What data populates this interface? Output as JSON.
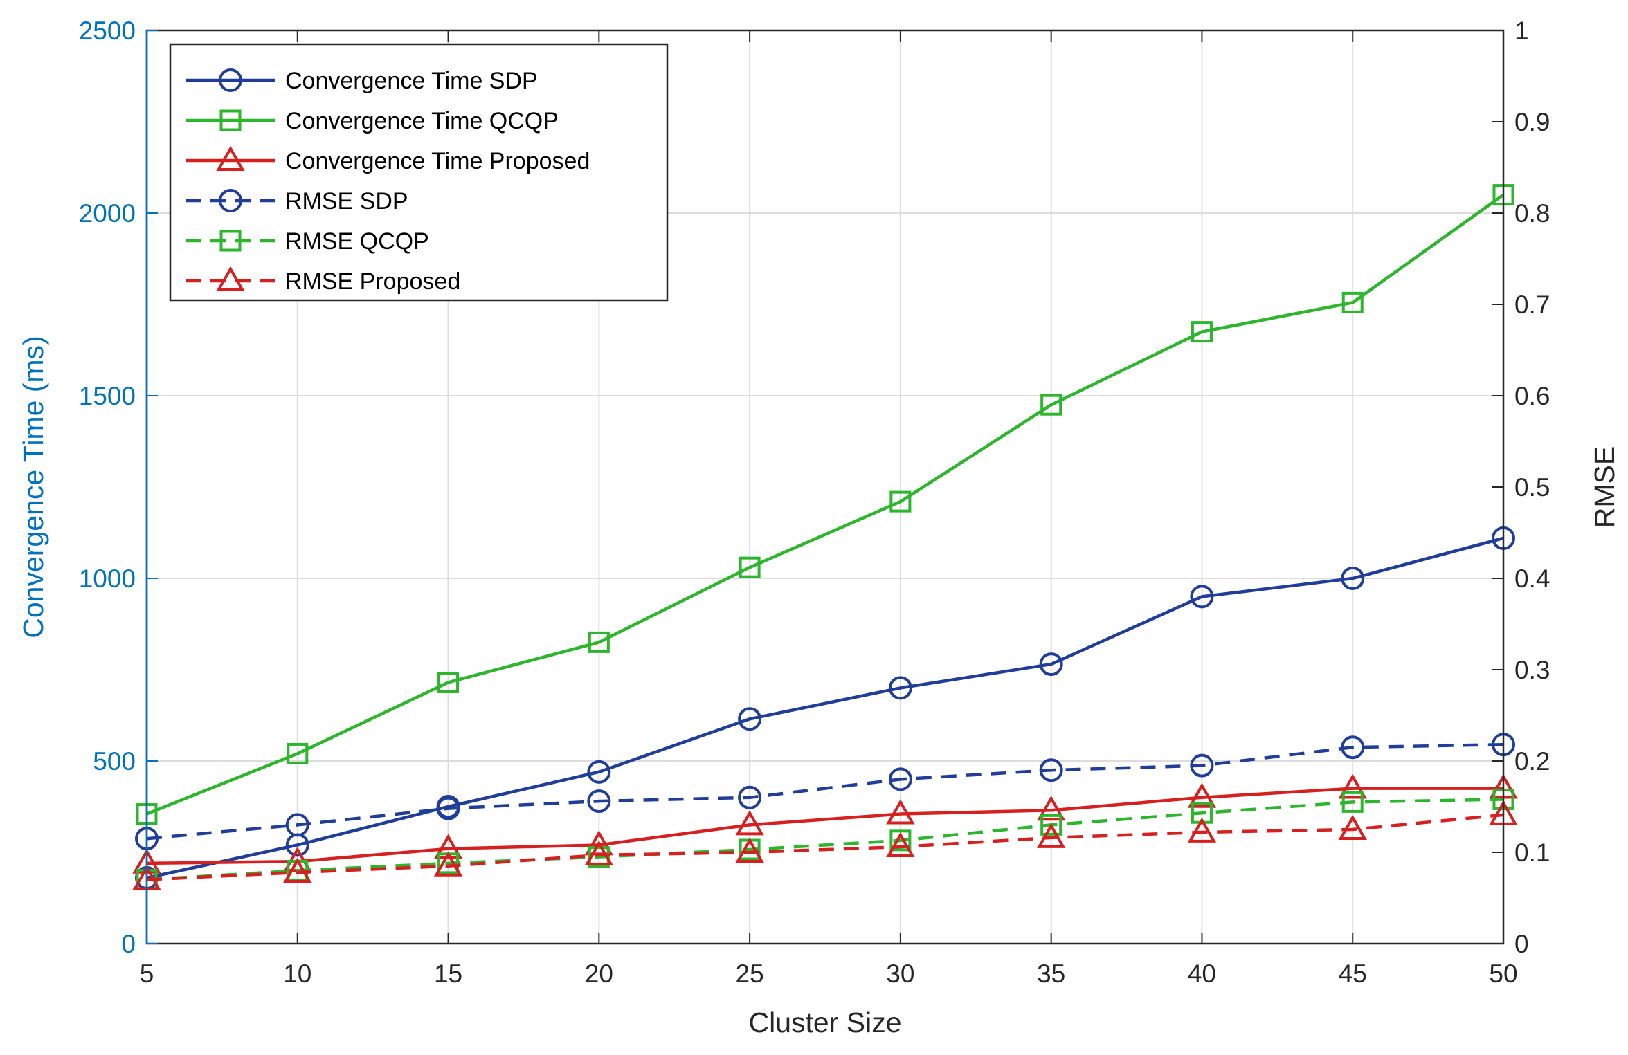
{
  "chart_data": {
    "type": "line",
    "title": "",
    "xlabel": "Cluster Size",
    "ylabel_left": "Convergence Time (ms)",
    "ylabel_right": "RMSE",
    "x": [
      5,
      10,
      15,
      20,
      25,
      30,
      35,
      40,
      45,
      50
    ],
    "x_ticks": [
      "5",
      "10",
      "15",
      "20",
      "25",
      "30",
      "35",
      "40",
      "45",
      "50"
    ],
    "xlim": [
      5,
      50
    ],
    "ylim_left": [
      0,
      2500
    ],
    "ylim_right": [
      0,
      1
    ],
    "y_ticks_left": [
      "0",
      "500",
      "1000",
      "1500",
      "2000",
      "2500"
    ],
    "y_ticks_right": [
      "0",
      "0.1",
      "0.2",
      "0.3",
      "0.4",
      "0.5",
      "0.6",
      "0.7",
      "0.8",
      "0.9",
      "1"
    ],
    "grid": true,
    "legend_position": "top-left",
    "series": [
      {
        "name": "Convergence Time SDP",
        "axis": "left",
        "style": "solid",
        "marker": "circle",
        "color": "#1F3D99",
        "values": [
          180,
          270,
          375,
          470,
          615,
          700,
          765,
          950,
          1000,
          1110
        ]
      },
      {
        "name": "Convergence Time QCQP",
        "axis": "left",
        "style": "solid",
        "marker": "square",
        "color": "#2DB52D",
        "values": [
          355,
          520,
          715,
          825,
          1030,
          1210,
          1475,
          1675,
          1755,
          2050
        ]
      },
      {
        "name": "Convergence Time Proposed",
        "axis": "left",
        "style": "solid",
        "marker": "triangle",
        "color": "#D62020",
        "values": [
          220,
          225,
          260,
          270,
          325,
          355,
          365,
          400,
          425,
          425
        ]
      },
      {
        "name": "RMSE SDP",
        "axis": "right",
        "style": "dashed",
        "marker": "circle",
        "color": "#1F3D99",
        "values": [
          0.115,
          0.13,
          0.148,
          0.156,
          0.16,
          0.18,
          0.19,
          0.195,
          0.215,
          0.218
        ]
      },
      {
        "name": "RMSE QCQP",
        "axis": "right",
        "style": "dashed",
        "marker": "square",
        "color": "#2DB52D",
        "values": [
          0.07,
          0.08,
          0.088,
          0.095,
          0.103,
          0.113,
          0.13,
          0.143,
          0.155,
          0.158
        ]
      },
      {
        "name": "RMSE Proposed",
        "axis": "right",
        "style": "dashed",
        "marker": "triangle",
        "color": "#D62020",
        "values": [
          0.07,
          0.078,
          0.085,
          0.097,
          0.1,
          0.106,
          0.116,
          0.122,
          0.125,
          0.141
        ]
      }
    ]
  }
}
